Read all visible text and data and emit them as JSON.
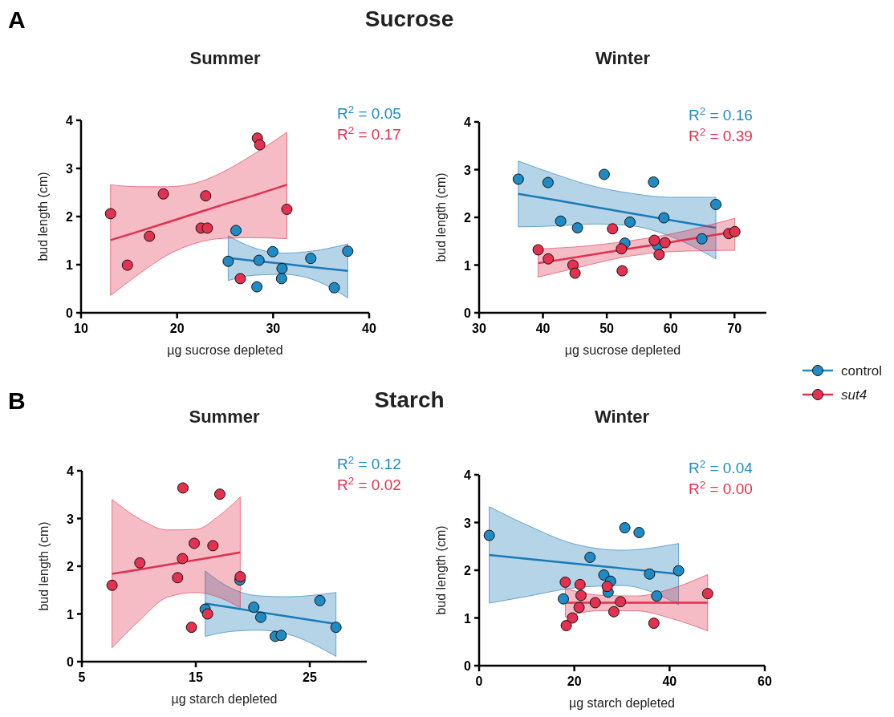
{
  "chart_data": [
    {
      "type": "scatter",
      "title": "Summer",
      "xlabel": "µg sucrose depleted",
      "ylabel": "bud length (cm)",
      "xlim": [
        10,
        40
      ],
      "xticks": [
        10,
        20,
        30,
        40
      ],
      "ylim": [
        0,
        4
      ],
      "yticks": [
        0,
        1,
        2,
        3,
        4
      ],
      "legend": false,
      "annotations": [
        "R$^{2}$ = 0.05",
        "R$^{2}$ = 0.17",
        "A",
        "Sucrose"
      ],
      "series": [
        {
          "type": "line",
          "marker": "none",
          "color": "#1a7ab8",
          "x": [
            25.32,
            28,
            31,
            34,
            37.77
          ],
          "values": [
            1.14,
            1.08,
            1.02,
            0.95,
            0.87
          ],
          "lower": [
            0.67,
            0.78,
            0.8,
            0.7,
            0.31
          ],
          "upper": [
            1.6,
            1.35,
            1.24,
            1.28,
            1.43
          ]
        },
        {
          "type": "line",
          "marker": "none",
          "color": "#e0304e",
          "x": [
            13.07,
            16,
            19,
            22,
            25,
            28,
            31.43
          ],
          "values": [
            1.51,
            1.69,
            1.88,
            2.07,
            2.26,
            2.44,
            2.66
          ],
          "lower": [
            0.36,
            0.8,
            1.2,
            1.45,
            1.55,
            1.56,
            1.54
          ],
          "upper": [
            2.66,
            2.62,
            2.62,
            2.7,
            2.95,
            3.3,
            3.75
          ]
        },
        {
          "marker": "circle",
          "color": "#1f8bc5",
          "x": [
            26.13,
            25.32,
            28.53,
            29.96,
            30.93,
            30.88,
            28.31,
            33.92,
            36.37,
            37.77
          ],
          "values": [
            1.71,
            1.07,
            1.09,
            1.27,
            0.92,
            0.71,
            0.54,
            1.13,
            0.52,
            1.28
          ]
        },
        {
          "marker": "circle",
          "color": "#e3314f",
          "x": [
            13.07,
            14.83,
            17.12,
            18.57,
            22.5,
            23.15,
            22.98,
            28.36,
            28.61,
            31.43,
            26.58
          ],
          "values": [
            2.06,
            0.99,
            1.59,
            2.47,
            1.76,
            1.76,
            2.43,
            3.63,
            3.49,
            2.15,
            0.71
          ]
        }
      ]
    },
    {
      "type": "scatter",
      "title": "Winter",
      "xlabel": "µg sucrose depleted",
      "ylabel": "bud length (cm)",
      "xlim": [
        30,
        75
      ],
      "xticks": [
        30,
        40,
        50,
        60,
        70
      ],
      "ylim": [
        0,
        4
      ],
      "yticks": [
        0,
        1,
        2,
        3,
        4
      ],
      "legend": "right",
      "annotations": [
        "R$^{2}$ = 0.16",
        "R$^{2}$ = 0.39"
      ],
      "series": [
        {
          "type": "line",
          "marker": "none",
          "color": "#1a7ab8",
          "x": [
            36.14,
            42,
            48,
            54,
            60,
            67.09
          ],
          "values": [
            2.49,
            2.36,
            2.22,
            2.08,
            1.94,
            1.78
          ],
          "lower": [
            1.8,
            1.82,
            1.86,
            1.82,
            1.6,
            1.13
          ],
          "upper": [
            3.18,
            2.9,
            2.65,
            2.5,
            2.42,
            2.42
          ]
        },
        {
          "type": "line",
          "marker": "none",
          "color": "#e0304e",
          "x": [
            39.25,
            45,
            52,
            60,
            70.06
          ],
          "values": [
            1.04,
            1.16,
            1.31,
            1.48,
            1.7
          ],
          "lower": [
            0.75,
            0.93,
            1.15,
            1.28,
            1.31
          ],
          "upper": [
            1.34,
            1.38,
            1.48,
            1.65,
            1.98
          ]
        },
        {
          "marker": "circle",
          "name": "control",
          "color": "#1f8bc5",
          "x": [
            36.14,
            40.8,
            42.77,
            45.41,
            49.6,
            52.83,
            53.63,
            57.32,
            57.99,
            58.95,
            64.9,
            67.09
          ],
          "values": [
            2.8,
            2.73,
            1.92,
            1.78,
            2.9,
            1.46,
            1.9,
            2.74,
            1.41,
            1.99,
            1.55,
            2.27
          ]
        },
        {
          "marker": "circle",
          "name": "sut4",
          "color": "#e3314f",
          "x": [
            39.25,
            40.84,
            44.7,
            45.03,
            50.9,
            52.29,
            52.41,
            57.44,
            59.12,
            58.2,
            69.1,
            70.06
          ],
          "values": [
            1.32,
            1.13,
            1.0,
            0.83,
            1.76,
            1.34,
            0.88,
            1.52,
            1.47,
            1.22,
            1.66,
            1.7
          ]
        }
      ]
    },
    {
      "type": "scatter",
      "title": "Summer",
      "xlabel": "µg starch depleted",
      "ylabel": "bud length (cm)",
      "xlim": [
        5,
        30
      ],
      "xticks": [
        5,
        15,
        25
      ],
      "ylim": [
        0,
        4
      ],
      "yticks": [
        0,
        1,
        2,
        3,
        4
      ],
      "legend": false,
      "annotations": [
        "R$^{2}$ = 0.12",
        "R$^{2}$ = 0.02",
        "B",
        "Starch"
      ],
      "series": [
        {
          "type": "line",
          "marker": "none",
          "color": "#1a7ab8",
          "x": [
            15.82,
            18,
            20.5,
            23,
            27.3
          ],
          "values": [
            1.22,
            1.14,
            1.04,
            0.95,
            0.79
          ],
          "lower": [
            0.53,
            0.63,
            0.66,
            0.58,
            0.11
          ],
          "upper": [
            1.9,
            1.55,
            1.38,
            1.36,
            1.45
          ]
        },
        {
          "type": "line",
          "marker": "none",
          "color": "#e0304e",
          "x": [
            7.65,
            10,
            12.5,
            15,
            17,
            18.9
          ],
          "values": [
            1.84,
            1.93,
            2.03,
            2.13,
            2.21,
            2.29
          ],
          "lower": [
            0.29,
            0.85,
            1.35,
            1.45,
            1.35,
            1.13
          ],
          "upper": [
            3.4,
            3.0,
            2.76,
            2.77,
            3.05,
            3.45
          ]
        },
        {
          "marker": "circle",
          "color": "#1f8bc5",
          "x": [
            15.82,
            18.87,
            20.09,
            20.7,
            21.97,
            22.49,
            25.89,
            27.3
          ],
          "values": [
            1.1,
            1.71,
            1.14,
            0.93,
            0.53,
            0.55,
            1.28,
            0.72
          ]
        },
        {
          "marker": "circle",
          "color": "#e3314f",
          "x": [
            7.65,
            10.09,
            13.4,
            13.83,
            13.87,
            14.86,
            14.62,
            16.5,
            17.11,
            16.03,
            18.9
          ],
          "values": [
            1.6,
            2.07,
            1.76,
            2.16,
            3.64,
            2.48,
            0.72,
            2.43,
            3.51,
            1.0,
            1.78
          ]
        }
      ]
    },
    {
      "type": "scatter",
      "title": "Winter",
      "xlabel": "µg starch depleted",
      "ylabel": "bud length (cm)",
      "xlim": [
        0,
        60
      ],
      "xticks": [
        0,
        20,
        40,
        60
      ],
      "ylim": [
        0,
        4
      ],
      "yticks": [
        0,
        1,
        2,
        3,
        4
      ],
      "legend": false,
      "annotations": [
        "R$^{2}$ = 0.04",
        "R$^{2}$ = 0.00"
      ],
      "series": [
        {
          "type": "line",
          "marker": "none",
          "color": "#1a7ab8",
          "x": [
            2.13,
            10,
            20,
            30,
            41.9
          ],
          "values": [
            2.32,
            2.24,
            2.14,
            2.04,
            1.92
          ],
          "lower": [
            1.31,
            1.45,
            1.63,
            1.68,
            1.28
          ],
          "upper": [
            3.33,
            2.95,
            2.55,
            2.42,
            2.56
          ]
        },
        {
          "type": "line",
          "marker": "none",
          "color": "#e0304e",
          "x": [
            18.1,
            25,
            33,
            40,
            48
          ],
          "values": [
            1.32,
            1.32,
            1.32,
            1.32,
            1.32
          ],
          "lower": [
            1.02,
            1.15,
            1.15,
            1.0,
            0.73
          ],
          "upper": [
            1.62,
            1.48,
            1.46,
            1.6,
            1.91
          ]
        },
        {
          "marker": "circle",
          "color": "#1f8bc5",
          "x": [
            2.13,
            17.7,
            23.3,
            26.2,
            27.1,
            27.6,
            30.6,
            33.6,
            35.8,
            37.3,
            41.9
          ],
          "values": [
            2.73,
            1.4,
            2.27,
            1.9,
            1.54,
            1.77,
            2.89,
            2.79,
            1.92,
            1.46,
            1.99
          ]
        },
        {
          "marker": "circle",
          "color": "#e3314f",
          "x": [
            18.1,
            18.3,
            19.6,
            21.0,
            21.2,
            21.4,
            24.4,
            26.9,
            28.3,
            29.7,
            36.7,
            48.0
          ],
          "values": [
            1.75,
            0.84,
            1.0,
            1.22,
            1.7,
            1.47,
            1.32,
            1.66,
            1.13,
            1.34,
            0.89,
            1.51
          ]
        }
      ]
    }
  ]
}
